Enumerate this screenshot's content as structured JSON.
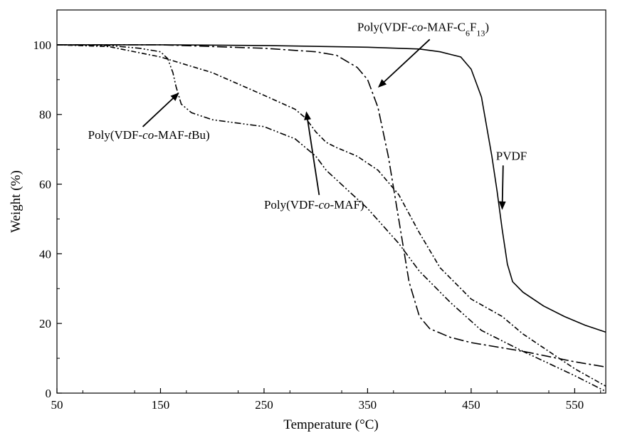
{
  "chart_data": {
    "type": "line",
    "xlabel": "Temperature (°C)",
    "ylabel": "Weight (%)",
    "xlim": [
      50,
      580
    ],
    "ylim": [
      0,
      110
    ],
    "xticks": [
      50,
      150,
      250,
      350,
      450,
      550
    ],
    "yticks": [
      0,
      20,
      40,
      60,
      80,
      100
    ],
    "grid": false,
    "series": [
      {
        "label_parts": [
          "PVDF"
        ],
        "dash": "",
        "x": [
          50,
          150,
          250,
          350,
          400,
          420,
          440,
          450,
          460,
          470,
          475,
          480,
          485,
          490,
          500,
          520,
          540,
          560,
          580
        ],
        "y": [
          100,
          100,
          99.8,
          99.3,
          98.8,
          98,
          96.5,
          93,
          85,
          68,
          58,
          47,
          37,
          32,
          29,
          25,
          22,
          19.5,
          17.5
        ]
      },
      {
        "label_parts": [
          "Poly(VDF-",
          "co",
          "-MAF-C",
          "6",
          "F",
          "13",
          ")"
        ],
        "dash": "14 4 3 4",
        "x": [
          50,
          150,
          250,
          300,
          320,
          340,
          350,
          360,
          370,
          380,
          390,
          400,
          410,
          430,
          450,
          480,
          500,
          550,
          580
        ],
        "y": [
          100,
          100,
          99,
          98,
          97,
          93.5,
          90,
          82,
          68,
          50,
          32,
          22,
          18.5,
          16,
          14.5,
          13,
          12,
          9,
          7.5
        ]
      },
      {
        "label_parts": [
          "Poly(VDF-",
          "co",
          "-MAF-",
          "t",
          "Bu)"
        ],
        "dash": "9 3 2 3 2 3",
        "x": [
          50,
          100,
          130,
          150,
          157,
          162,
          165,
          170,
          180,
          200,
          250,
          280,
          300,
          310,
          330,
          350,
          380,
          400,
          430,
          460,
          500,
          550,
          580
        ],
        "y": [
          100,
          99.8,
          99,
          98,
          96,
          92,
          88,
          83,
          80.5,
          78.5,
          76.5,
          73,
          68,
          64,
          58.5,
          53,
          43,
          35,
          26,
          18,
          12,
          5,
          0.5
        ]
      },
      {
        "label_parts": [
          "Poly(VDF-",
          "co",
          "-MAF",
          ")"
        ],
        "dash": "7 3 2 3",
        "x": [
          50,
          100,
          150,
          200,
          250,
          280,
          290,
          300,
          310,
          320,
          340,
          360,
          380,
          400,
          420,
          450,
          480,
          500,
          550,
          580
        ],
        "y": [
          100,
          99.5,
          96.5,
          92,
          85.5,
          81.5,
          79,
          75,
          72,
          70.5,
          68,
          64,
          57,
          46,
          36,
          27,
          22,
          17,
          7,
          2
        ]
      }
    ],
    "annotations": [
      {
        "text_parts": [
          "PVDF"
        ],
        "x": 474,
        "y": 67,
        "arrow_to": [
          480,
          53
        ]
      },
      {
        "text_parts": [
          "Poly(VDF-",
          "co",
          "-MAF-C",
          "6",
          "F",
          "13",
          ")"
        ],
        "x": 340,
        "y": 104,
        "arrow_to": [
          361,
          88
        ]
      },
      {
        "text_parts": [
          "Poly(VDF-",
          "co",
          "-MAF-",
          "t",
          "Bu)"
        ],
        "x": 80,
        "y": 73,
        "arrow_to": [
          167,
          86
        ]
      },
      {
        "text_parts": [
          "Poly(VDF-",
          "co",
          "-MAF",
          ")"
        ],
        "x": 250,
        "y": 53,
        "arrow_to": [
          291,
          80.5
        ]
      }
    ]
  }
}
